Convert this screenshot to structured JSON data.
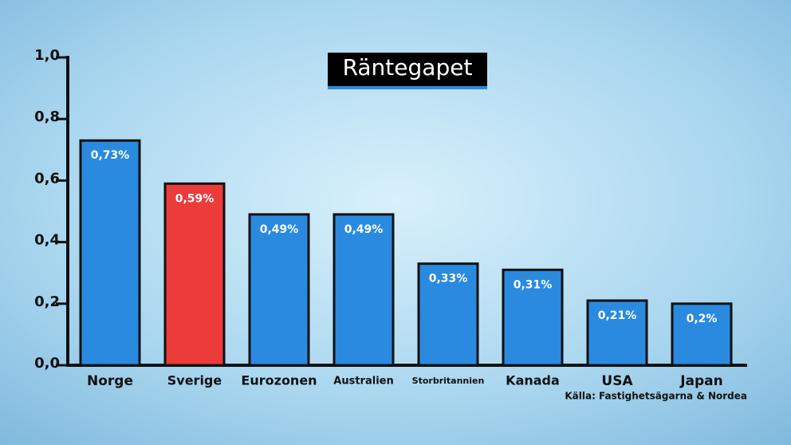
{
  "chart_data": {
    "type": "bar",
    "title": "Räntegapet",
    "categories": [
      "Norge",
      "Sverige",
      "Eurozonen",
      "Australien",
      "Storbritannien",
      "Kanada",
      "USA",
      "Japan"
    ],
    "values": [
      0.73,
      0.59,
      0.49,
      0.49,
      0.33,
      0.31,
      0.21,
      0.2
    ],
    "value_labels": [
      "0,73%",
      "0,59%",
      "0,49%",
      "0,49%",
      "0,33%",
      "0,31%",
      "0,21%",
      "0,2%"
    ],
    "colors": [
      "#2a8ae0",
      "#ec3b3b",
      "#2a8ae0",
      "#2a8ae0",
      "#2a8ae0",
      "#2a8ae0",
      "#2a8ae0",
      "#2a8ae0"
    ],
    "ylim": [
      0,
      1
    ],
    "yticks": [
      {
        "value": 0,
        "label": "0,0"
      },
      {
        "value": 0.2,
        "label": "0,2"
      },
      {
        "value": 0.4,
        "label": "0,4"
      },
      {
        "value": 0.6,
        "label": "0,6"
      },
      {
        "value": 0.8,
        "label": "0,8"
      },
      {
        "value": 1,
        "label": "1,0"
      }
    ],
    "source": "Källa: Fastighetsägarna & Nordea"
  }
}
